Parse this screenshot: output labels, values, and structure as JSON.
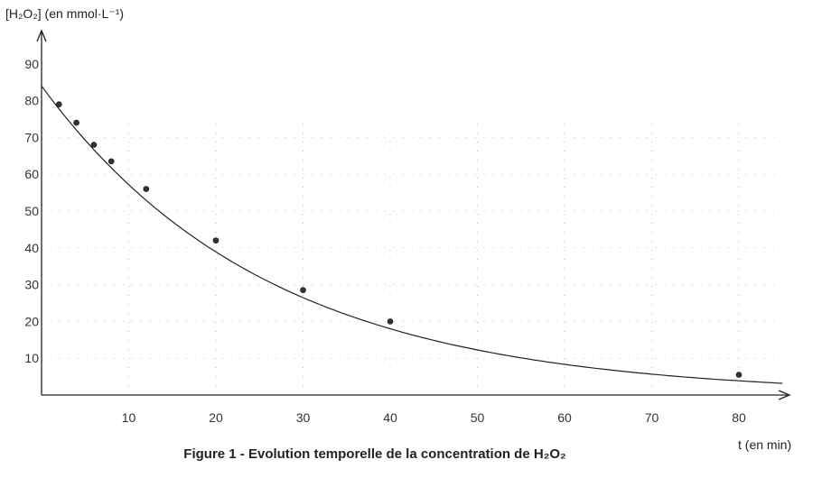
{
  "chart_data": {
    "type": "scatter",
    "ylabel": "[H₂O₂] (en mmol·L⁻¹)",
    "xlabel": "t (en min)",
    "caption": "Figure 1 - Evolution temporelle de la concentration de H₂O₂",
    "x_ticks": [
      "10",
      "20",
      "30",
      "40",
      "50",
      "60",
      "70",
      "80"
    ],
    "y_ticks": [
      "10",
      "20",
      "30",
      "40",
      "50",
      "60",
      "70",
      "90"
    ],
    "y_ticks_extra": [
      "80"
    ],
    "xlim": [
      0,
      86
    ],
    "ylim": [
      0,
      98
    ],
    "grid": true,
    "series": [
      {
        "points": [
          {
            "x": 2,
            "y": 79
          },
          {
            "x": 4,
            "y": 74
          },
          {
            "x": 6,
            "y": 68
          },
          {
            "x": 8,
            "y": 63.5
          },
          {
            "x": 12,
            "y": 56
          },
          {
            "x": 20,
            "y": 42
          },
          {
            "x": 30,
            "y": 28.5
          },
          {
            "x": 40,
            "y": 20
          },
          {
            "x": 80,
            "y": 5.5
          }
        ]
      }
    ],
    "fit_curve": {
      "type": "exponential",
      "a": 84,
      "k": 0.0385
    }
  }
}
